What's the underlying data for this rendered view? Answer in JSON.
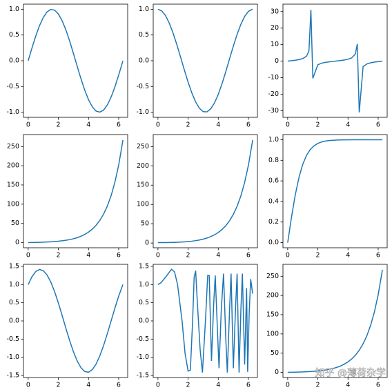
{
  "chart_data": [
    {
      "type": "line",
      "color": "#1f77b4",
      "xlim": [
        -0.314,
        6.597
      ],
      "ylim": [
        -1.1,
        1.1
      ],
      "xticks": [
        0,
        2,
        4,
        6
      ],
      "yticks": [
        {
          "value": -1,
          "label": "-1.0"
        },
        -0.5,
        {
          "value": 0,
          "label": "0.0"
        },
        0.5,
        {
          "value": 1,
          "label": "1.0"
        }
      ],
      "x": [
        0,
        0.25,
        0.5,
        0.75,
        1,
        1.25,
        1.5,
        1.75,
        2,
        2.25,
        2.5,
        2.75,
        3,
        3.25,
        3.5,
        3.75,
        4,
        4.25,
        4.5,
        4.75,
        5,
        5.25,
        5.5,
        5.75,
        6,
        6.25,
        6.28
      ],
      "values": [
        0,
        0.247,
        0.479,
        0.682,
        0.841,
        0.949,
        0.997,
        0.984,
        0.909,
        0.778,
        0.598,
        0.382,
        0.141,
        -0.108,
        -0.351,
        -0.572,
        -0.757,
        -0.895,
        -0.978,
        -0.999,
        -0.959,
        -0.859,
        -0.706,
        -0.51,
        -0.279,
        -0.033,
        -0.003
      ]
    },
    {
      "type": "line",
      "color": "#1f77b4",
      "xlim": [
        -0.314,
        6.597
      ],
      "ylim": [
        -1.1,
        1.1
      ],
      "xticks": [
        0,
        2,
        4,
        6
      ],
      "yticks": [
        {
          "value": -1,
          "label": "-1.0"
        },
        -0.5,
        {
          "value": 0,
          "label": "0.0"
        },
        0.5,
        {
          "value": 1,
          "label": "1.0"
        }
      ],
      "x": [
        0,
        0.25,
        0.5,
        0.75,
        1,
        1.25,
        1.5,
        1.75,
        2,
        2.25,
        2.5,
        2.75,
        3,
        3.25,
        3.5,
        3.75,
        4,
        4.25,
        4.5,
        4.75,
        5,
        5.25,
        5.5,
        5.75,
        6,
        6.25,
        6.28
      ],
      "values": [
        1,
        0.969,
        0.878,
        0.732,
        0.54,
        0.315,
        0.071,
        -0.178,
        -0.416,
        -0.628,
        -0.801,
        -0.924,
        -0.99,
        -0.994,
        -0.936,
        -0.82,
        -0.654,
        -0.446,
        -0.211,
        0.038,
        0.284,
        0.512,
        0.709,
        0.861,
        0.96,
        0.999,
        1
      ]
    },
    {
      "type": "line",
      "color": "#1f77b4",
      "xlim": [
        -0.314,
        6.597
      ],
      "ylim": [
        -34,
        34.5
      ],
      "xticks": [
        0,
        2,
        4,
        6
      ],
      "yticks": [
        -30,
        -20,
        -10,
        0,
        10,
        20,
        30
      ],
      "x": [
        0,
        0.25,
        0.5,
        0.75,
        1,
        1.25,
        1.41,
        1.539,
        1.667,
        2,
        2.25,
        2.5,
        2.75,
        3,
        3.25,
        3.5,
        3.75,
        4,
        4.25,
        4.488,
        4.616,
        4.745,
        5,
        5.25,
        5.5,
        5.75,
        6,
        6.25,
        6.28
      ],
      "values": [
        0,
        0.255,
        0.546,
        0.932,
        1.557,
        3.01,
        6.19,
        31.1,
        -10.4,
        -2.185,
        -1.239,
        -0.747,
        -0.413,
        -0.143,
        0.109,
        0.375,
        0.698,
        1.158,
        2.007,
        4.38,
        10.4,
        -31.0,
        -3.381,
        -1.678,
        -0.996,
        -0.592,
        -0.291,
        -0.033,
        -0.003
      ]
    },
    {
      "type": "line",
      "color": "#1f77b4",
      "xlim": [
        -0.314,
        6.597
      ],
      "ylim": [
        -13.4,
        281
      ],
      "xticks": [
        0,
        2,
        4,
        6
      ],
      "yticks": [
        0,
        50,
        100,
        150,
        200,
        250
      ],
      "x": [
        0,
        0.25,
        0.5,
        0.75,
        1,
        1.25,
        1.5,
        1.75,
        2,
        2.25,
        2.5,
        2.75,
        3,
        3.25,
        3.5,
        3.75,
        4,
        4.25,
        4.5,
        4.75,
        5,
        5.25,
        5.5,
        5.75,
        6,
        6.25,
        6.28
      ],
      "values": [
        0,
        0.253,
        0.521,
        0.822,
        1.175,
        1.602,
        2.129,
        2.79,
        3.627,
        4.691,
        6.05,
        7.789,
        10.02,
        12.88,
        16.54,
        21.25,
        27.29,
        35.05,
        45.0,
        57.8,
        74.2,
        95.28,
        122.3,
        157.1,
        201.7,
        259.0,
        266.8
      ]
    },
    {
      "type": "line",
      "color": "#1f77b4",
      "xlim": [
        -0.314,
        6.597
      ],
      "ylim": [
        -12.3,
        281
      ],
      "xticks": [
        0,
        2,
        4,
        6
      ],
      "yticks": [
        0,
        50,
        100,
        150,
        200,
        250
      ],
      "x": [
        0,
        0.25,
        0.5,
        0.75,
        1,
        1.25,
        1.5,
        1.75,
        2,
        2.25,
        2.5,
        2.75,
        3,
        3.25,
        3.5,
        3.75,
        4,
        4.25,
        4.5,
        4.75,
        5,
        5.25,
        5.5,
        5.75,
        6,
        6.25,
        6.28
      ],
      "values": [
        1,
        1.031,
        1.128,
        1.295,
        1.543,
        1.888,
        2.352,
        2.964,
        3.762,
        4.797,
        6.132,
        7.853,
        10.07,
        12.91,
        16.57,
        21.27,
        27.31,
        35.06,
        45.01,
        57.81,
        74.21,
        95.29,
        122.3,
        157.1,
        201.7,
        259.0,
        266.8
      ]
    },
    {
      "type": "line",
      "color": "#1f77b4",
      "xlim": [
        -0.314,
        6.597
      ],
      "ylim": [
        -0.05,
        1.05
      ],
      "xticks": [
        0,
        2,
        4,
        6
      ],
      "yticks": [
        {
          "value": 0,
          "label": "0.0"
        },
        0.2,
        0.4,
        0.6,
        0.8,
        {
          "value": 1,
          "label": "1.0"
        }
      ],
      "x": [
        0,
        0.25,
        0.5,
        0.75,
        1,
        1.25,
        1.5,
        1.75,
        2,
        2.25,
        2.5,
        2.75,
        3,
        3.25,
        3.5,
        3.75,
        4,
        4.25,
        4.5,
        4.75,
        5,
        5.25,
        5.5,
        5.75,
        6,
        6.25,
        6.28
      ],
      "values": [
        0,
        0.245,
        0.462,
        0.635,
        0.762,
        0.848,
        0.905,
        0.941,
        0.964,
        0.978,
        0.987,
        0.992,
        0.995,
        0.997,
        0.998,
        0.999,
        0.999,
        1,
        1,
        1,
        1,
        1,
        1,
        1,
        1,
        1,
        1
      ]
    },
    {
      "type": "line",
      "color": "#1f77b4",
      "xlim": [
        -0.314,
        6.597
      ],
      "ylim": [
        -1.556,
        1.556
      ],
      "xticks": [
        0,
        2,
        4,
        6
      ],
      "yticks": [
        -1.5,
        {
          "value": -1,
          "label": "-1.0"
        },
        -0.5,
        {
          "value": 0,
          "label": "0.0"
        },
        0.5,
        {
          "value": 1,
          "label": "1.0"
        },
        1.5
      ],
      "x": [
        0,
        0.25,
        0.5,
        0.75,
        1,
        1.25,
        1.5,
        1.75,
        2,
        2.25,
        2.5,
        2.75,
        3,
        3.25,
        3.5,
        3.75,
        4,
        4.25,
        4.5,
        4.75,
        5,
        5.25,
        5.5,
        5.75,
        6,
        6.25,
        6.28
      ],
      "values": [
        1,
        1.216,
        1.357,
        1.414,
        1.381,
        1.264,
        1.068,
        0.806,
        0.493,
        0.15,
        -0.203,
        -0.542,
        -0.849,
        -1.102,
        -1.287,
        -1.392,
        -1.411,
        -1.341,
        -1.189,
        -0.961,
        -0.675,
        -0.347,
        0.003,
        0.351,
        0.681,
        0.966,
        0.997
      ]
    },
    {
      "type": "line",
      "color": "#1f77b4",
      "xlim": [
        -0.314,
        6.597
      ],
      "ylim": [
        -1.556,
        1.556
      ],
      "xticks": [
        0,
        2,
        4,
        6
      ],
      "yticks": [
        -1.5,
        {
          "value": -1,
          "label": "-1.0"
        },
        -0.5,
        {
          "value": 0,
          "label": "0.0"
        },
        0.5,
        {
          "value": 1,
          "label": "1.0"
        },
        1.5
      ],
      "x": [
        0,
        0.2,
        0.5,
        0.9,
        1.1,
        1.3,
        1.6,
        1.8,
        2.0,
        2.15,
        2.3,
        2.4,
        2.5,
        2.6,
        2.8,
        2.95,
        3.15,
        3.3,
        3.4,
        3.55,
        3.7,
        3.8,
        3.95,
        4.05,
        4.2,
        4.35,
        4.5,
        4.6,
        4.75,
        4.85,
        5.0,
        5.15,
        5.25,
        5.38,
        5.5,
        5.6,
        5.75,
        5.88,
        5.95,
        6.05,
        6.15,
        6.28
      ],
      "values": [
        1,
        1.05,
        1.2,
        1.42,
        1.35,
        1.0,
        0.0,
        -0.9,
        -1.38,
        -1.35,
        0.0,
        1.2,
        1.38,
        0.6,
        -0.8,
        -1.42,
        0.0,
        1.25,
        1.25,
        -1.1,
        0.5,
        1.25,
        -0.3,
        -1.3,
        0.3,
        1.3,
        -0.5,
        -1.42,
        0.3,
        1.3,
        -1.3,
        0.4,
        1.3,
        -1.42,
        0.3,
        1.3,
        -1.2,
        0.9,
        -1.4,
        0.2,
        1.15,
        0.75
      ]
    },
    {
      "type": "line",
      "color": "#1f77b4",
      "xlim": [
        -0.314,
        6.597
      ],
      "ylim": [
        -13.4,
        281
      ],
      "xticks": [
        0,
        2,
        4,
        6
      ],
      "yticks": [
        0,
        50,
        100,
        150,
        200,
        250
      ],
      "x": [
        0,
        0.25,
        0.5,
        0.75,
        1,
        1.25,
        1.5,
        1.75,
        2,
        2.25,
        2.5,
        2.75,
        3,
        3.25,
        3.5,
        3.75,
        4,
        4.25,
        4.5,
        4.75,
        5,
        5.25,
        5.5,
        5.75,
        6,
        6.25,
        6.28
      ],
      "values": [
        0,
        0.253,
        0.521,
        0.822,
        1.175,
        1.602,
        2.129,
        2.79,
        3.627,
        4.691,
        6.05,
        7.789,
        10.02,
        12.88,
        16.54,
        21.25,
        27.29,
        35.05,
        45.0,
        57.8,
        74.2,
        95.28,
        122.3,
        157.1,
        201.7,
        259.0,
        266.8
      ],
      "annotation": "知乎 @薄荷杂学"
    }
  ]
}
